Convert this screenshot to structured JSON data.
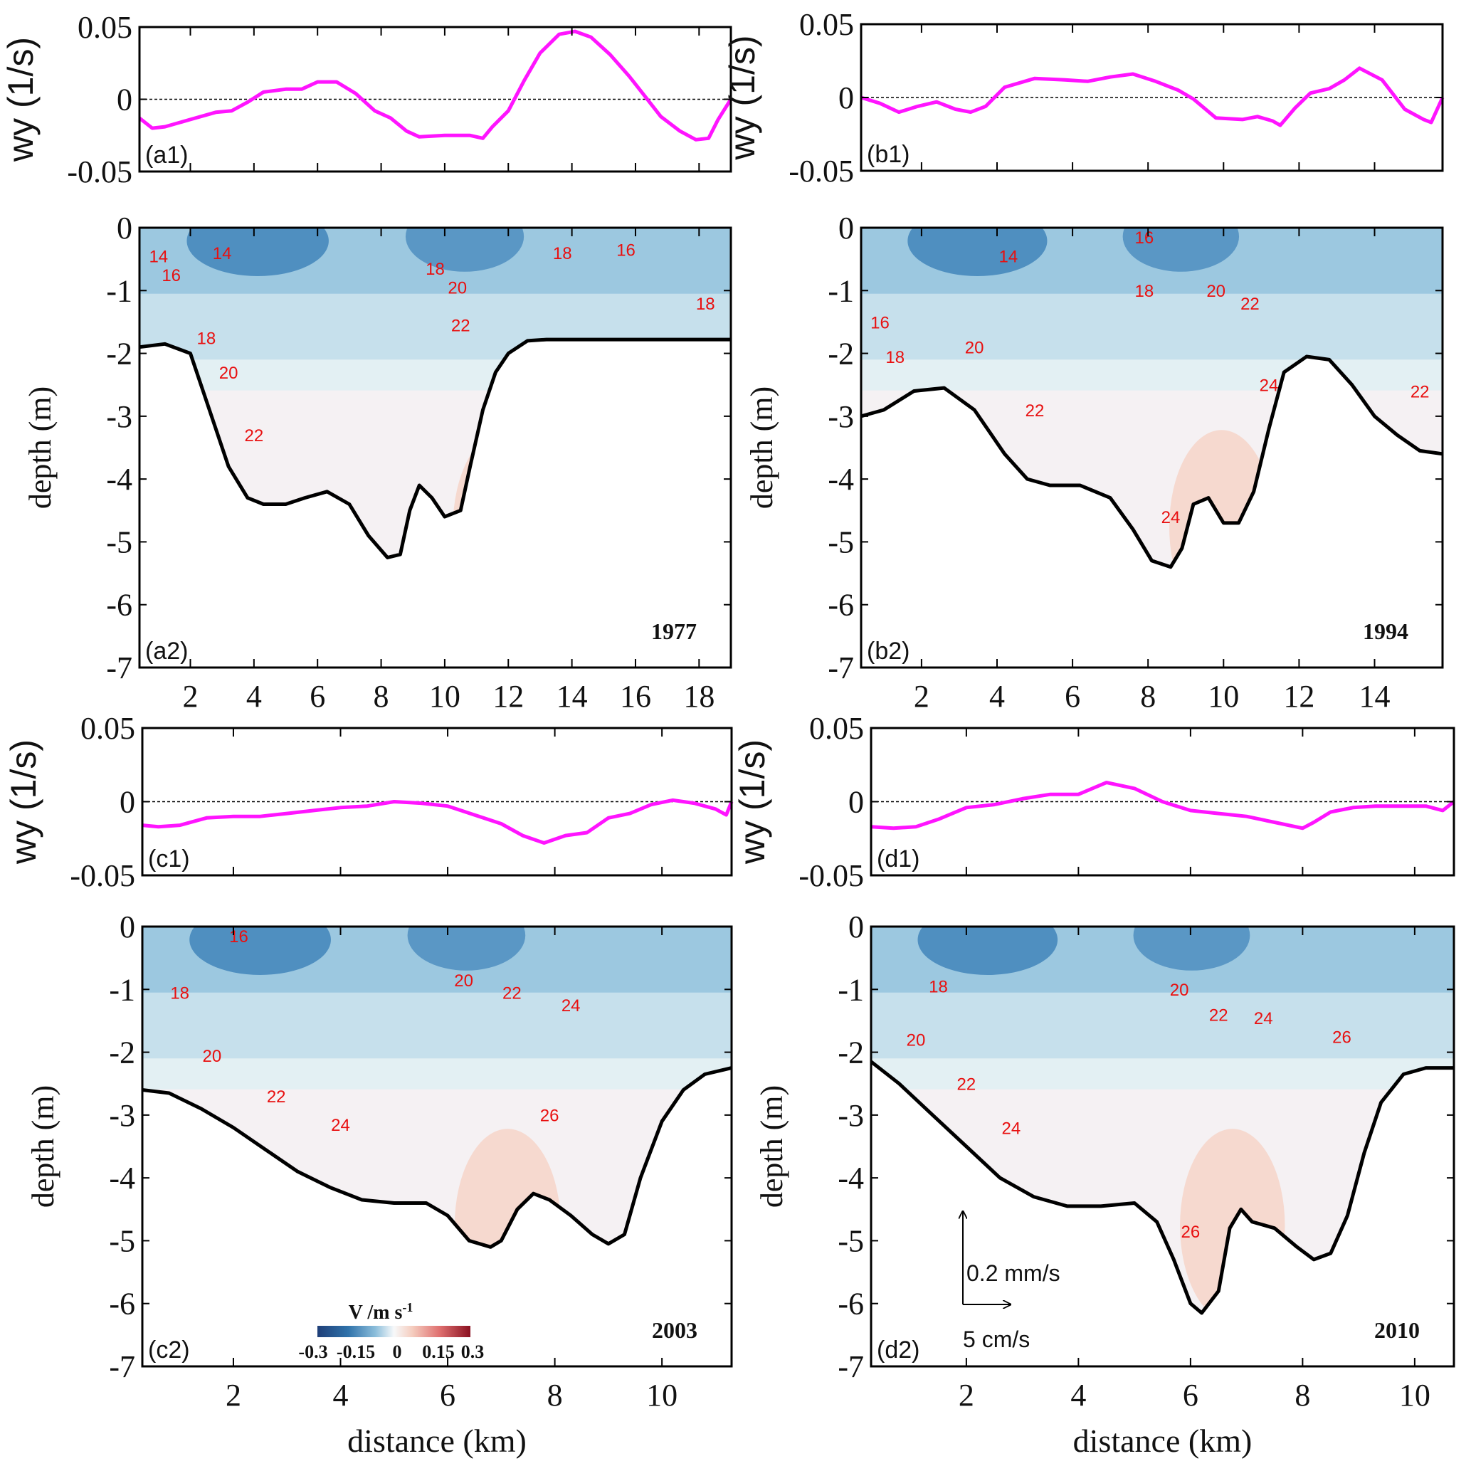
{
  "figure": {
    "colors": {
      "wy_line": "#ff14ff",
      "contour_line": "#1030e0",
      "contour_label": "#e81010",
      "bathymetry": "#000000",
      "frame": "#000000"
    },
    "colorbar": {
      "title": "V /m s",
      "title_sup": "-1",
      "ticks": [
        "-0.3",
        "-0.15",
        "0",
        "0.15",
        "0.3"
      ],
      "range": [
        -0.3,
        0.3
      ],
      "colors": [
        "#1f3f78",
        "#2f72aa",
        "#6aa6cf",
        "#b7d6e8",
        "#f4f7f8",
        "#f7d8cc",
        "#ec9a93",
        "#d44c55",
        "#8a1020"
      ]
    },
    "scale_arrow": {
      "vertical_label": "0.2 mm/s",
      "horizontal_label": "5 cm/s"
    }
  },
  "chart_data": [
    {
      "id": "a1",
      "type": "line",
      "panel_label": "(a1)",
      "ylabel": "wy (1/s)",
      "ylim": [
        -0.05,
        0.05
      ],
      "yticks": [
        "0.05",
        "0",
        "-0.05"
      ],
      "xlim": [
        0.4,
        19.0
      ],
      "xticks": [
        2,
        4,
        6,
        8,
        10,
        12,
        14,
        16,
        18
      ],
      "xtick_labels_shown": false,
      "zero_line": "dashed",
      "x": [
        0.4,
        0.8,
        1.2,
        2.0,
        2.8,
        3.3,
        3.8,
        4.3,
        5.0,
        5.5,
        6.0,
        6.6,
        7.2,
        7.8,
        8.3,
        8.8,
        9.2,
        10.0,
        10.8,
        11.2,
        11.5,
        12.0,
        12.5,
        13.0,
        13.6,
        14.1,
        14.6,
        15.2,
        15.8,
        16.3,
        16.8,
        17.4,
        17.9,
        18.3,
        18.6,
        19.0
      ],
      "y": [
        -0.013,
        -0.02,
        -0.019,
        -0.014,
        -0.009,
        -0.008,
        -0.002,
        0.005,
        0.007,
        0.007,
        0.012,
        0.012,
        0.004,
        -0.008,
        -0.013,
        -0.022,
        -0.026,
        -0.025,
        -0.025,
        -0.027,
        -0.019,
        -0.008,
        0.013,
        0.032,
        0.045,
        0.047,
        0.043,
        0.031,
        0.016,
        0.002,
        -0.012,
        -0.022,
        -0.028,
        -0.027,
        -0.014,
        0.0
      ]
    },
    {
      "id": "b1",
      "type": "line",
      "panel_label": "(b1)",
      "ylabel": "wy (1/s)",
      "ylim": [
        -0.05,
        0.05
      ],
      "yticks": [
        "0.05",
        "0",
        "-0.05"
      ],
      "xlim": [
        0.4,
        15.8
      ],
      "xticks": [
        2,
        4,
        6,
        8,
        10,
        12,
        14
      ],
      "xtick_labels_shown": false,
      "zero_line": "dashed",
      "x": [
        0.4,
        0.9,
        1.4,
        1.9,
        2.4,
        2.9,
        3.3,
        3.7,
        4.2,
        5.0,
        5.8,
        6.4,
        7.0,
        7.6,
        8.2,
        8.8,
        9.2,
        9.8,
        10.5,
        10.9,
        11.3,
        11.5,
        11.9,
        12.3,
        12.8,
        13.2,
        13.6,
        14.2,
        14.8,
        15.3,
        15.5,
        15.8
      ],
      "y": [
        0.0,
        -0.004,
        -0.01,
        -0.006,
        -0.003,
        -0.008,
        -0.01,
        -0.006,
        0.007,
        0.013,
        0.012,
        0.011,
        0.014,
        0.016,
        0.011,
        0.005,
        -0.001,
        -0.014,
        -0.015,
        -0.013,
        -0.016,
        -0.019,
        -0.007,
        0.003,
        0.006,
        0.012,
        0.02,
        0.012,
        -0.008,
        -0.015,
        -0.017,
        0.0
      ]
    },
    {
      "id": "c1",
      "type": "line",
      "panel_label": "(c1)",
      "ylabel": "wy (1/s)",
      "ylim": [
        -0.05,
        0.05
      ],
      "yticks": [
        "0.05",
        "0",
        "-0.05"
      ],
      "xlim": [
        0.3,
        11.3
      ],
      "xticks": [
        2,
        4,
        6,
        8,
        10
      ],
      "xtick_labels_shown": false,
      "zero_line": "dashed",
      "x": [
        0.3,
        0.6,
        1.0,
        1.5,
        2.0,
        2.5,
        3.0,
        3.5,
        4.0,
        4.5,
        5.0,
        5.5,
        6.0,
        6.5,
        7.0,
        7.4,
        7.8,
        8.2,
        8.6,
        9.0,
        9.4,
        9.8,
        10.2,
        10.6,
        11.0,
        11.2,
        11.3
      ],
      "y": [
        -0.016,
        -0.017,
        -0.016,
        -0.011,
        -0.01,
        -0.01,
        -0.008,
        -0.006,
        -0.004,
        -0.003,
        0.0,
        -0.001,
        -0.003,
        -0.009,
        -0.015,
        -0.023,
        -0.028,
        -0.023,
        -0.021,
        -0.011,
        -0.008,
        -0.002,
        0.001,
        -0.001,
        -0.005,
        -0.009,
        0.0
      ]
    },
    {
      "id": "d1",
      "type": "line",
      "panel_label": "(d1)",
      "ylabel": "wy (1/s)",
      "ylim": [
        -0.05,
        0.05
      ],
      "yticks": [
        "0.05",
        "0",
        "-0.05"
      ],
      "xlim": [
        0.3,
        10.7
      ],
      "xticks": [
        2,
        4,
        6,
        8,
        10
      ],
      "xtick_labels_shown": false,
      "zero_line": "dashed",
      "x": [
        0.3,
        0.7,
        1.1,
        1.5,
        2.0,
        2.5,
        3.0,
        3.5,
        4.0,
        4.5,
        5.0,
        5.5,
        6.0,
        6.5,
        7.0,
        7.5,
        8.0,
        8.2,
        8.5,
        8.9,
        9.3,
        9.8,
        10.2,
        10.5,
        10.7
      ],
      "y": [
        -0.017,
        -0.018,
        -0.017,
        -0.012,
        -0.004,
        -0.002,
        0.002,
        0.005,
        0.005,
        0.013,
        0.009,
        0.0,
        -0.006,
        -0.008,
        -0.01,
        -0.014,
        -0.018,
        -0.014,
        -0.007,
        -0.004,
        -0.003,
        -0.003,
        -0.003,
        -0.006,
        0.0
      ]
    },
    {
      "id": "a2",
      "type": "heatmap",
      "panel_label": "(a2)",
      "year": "1977",
      "ylabel": "depth (m)",
      "ylim": [
        -7,
        0
      ],
      "yticks": [
        "0",
        "-1",
        "-2",
        "-3",
        "-4",
        "-5",
        "-6",
        "-7"
      ],
      "xlim": [
        0.4,
        19.0
      ],
      "xticks": [
        "2",
        "4",
        "6",
        "8",
        "10",
        "12",
        "14",
        "16",
        "18"
      ],
      "xlabel": "",
      "bathymetry": {
        "x": [
          0.4,
          1.2,
          2.0,
          2.6,
          3.2,
          3.8,
          4.3,
          5.0,
          5.6,
          6.3,
          7.0,
          7.6,
          8.2,
          8.6,
          8.9,
          9.2,
          9.6,
          10.0,
          10.5,
          10.8,
          11.2,
          11.6,
          12.0,
          12.6,
          13.2,
          14.0,
          16.0,
          18.0,
          19.0
        ],
        "depth": [
          -1.9,
          -1.85,
          -2.0,
          -2.9,
          -3.8,
          -4.3,
          -4.4,
          -4.4,
          -4.3,
          -4.2,
          -4.4,
          -4.9,
          -5.25,
          -5.2,
          -4.5,
          -4.1,
          -4.3,
          -4.6,
          -4.5,
          -3.8,
          -2.9,
          -2.3,
          -2.0,
          -1.8,
          -1.78,
          -1.78,
          -1.78,
          -1.78,
          -1.78
        ]
      },
      "isotherm_labels": [
        {
          "value": "14",
          "x": 1.0,
          "depth": -0.55
        },
        {
          "value": "14",
          "x": 3.0,
          "depth": -0.5
        },
        {
          "value": "16",
          "x": 1.4,
          "depth": -0.85
        },
        {
          "value": "18",
          "x": 2.5,
          "depth": -1.85
        },
        {
          "value": "20",
          "x": 3.2,
          "depth": -2.4
        },
        {
          "value": "22",
          "x": 4.0,
          "depth": -3.4
        },
        {
          "value": "18",
          "x": 9.7,
          "depth": -0.75
        },
        {
          "value": "20",
          "x": 10.4,
          "depth": -1.05
        },
        {
          "value": "22",
          "x": 10.5,
          "depth": -1.65
        },
        {
          "value": "18",
          "x": 13.7,
          "depth": -0.5
        },
        {
          "value": "16",
          "x": 15.7,
          "depth": -0.45
        },
        {
          "value": "18",
          "x": 18.2,
          "depth": -1.3
        }
      ]
    },
    {
      "id": "b2",
      "type": "heatmap",
      "panel_label": "(b2)",
      "year": "1994",
      "ylabel": "depth (m)",
      "ylim": [
        -7,
        0
      ],
      "yticks": [
        "0",
        "-1",
        "-2",
        "-3",
        "-4",
        "-5",
        "-6",
        "-7"
      ],
      "xlim": [
        0.4,
        15.8
      ],
      "xticks": [
        "2",
        "4",
        "6",
        "8",
        "10",
        "12",
        "14"
      ],
      "xlabel": "",
      "bathymetry": {
        "x": [
          0.4,
          1.0,
          1.8,
          2.6,
          3.4,
          4.2,
          4.8,
          5.4,
          6.2,
          7.0,
          7.6,
          8.1,
          8.6,
          8.9,
          9.2,
          9.6,
          10.0,
          10.4,
          10.8,
          11.2,
          11.6,
          12.2,
          12.8,
          13.4,
          14.0,
          14.6,
          15.2,
          15.8
        ],
        "depth": [
          -3.0,
          -2.9,
          -2.6,
          -2.55,
          -2.9,
          -3.6,
          -4.0,
          -4.1,
          -4.1,
          -4.3,
          -4.8,
          -5.3,
          -5.4,
          -5.1,
          -4.4,
          -4.3,
          -4.7,
          -4.7,
          -4.2,
          -3.2,
          -2.3,
          -2.05,
          -2.1,
          -2.5,
          -3.0,
          -3.3,
          -3.55,
          -3.6
        ]
      },
      "isotherm_labels": [
        {
          "value": "14",
          "x": 4.3,
          "depth": -0.55
        },
        {
          "value": "16",
          "x": 7.9,
          "depth": -0.25
        },
        {
          "value": "18",
          "x": 7.9,
          "depth": -1.1
        },
        {
          "value": "20",
          "x": 9.8,
          "depth": -1.1
        },
        {
          "value": "22",
          "x": 10.7,
          "depth": -1.3
        },
        {
          "value": "16",
          "x": 0.9,
          "depth": -1.6
        },
        {
          "value": "18",
          "x": 1.3,
          "depth": -2.15
        },
        {
          "value": "20",
          "x": 3.4,
          "depth": -2.0
        },
        {
          "value": "22",
          "x": 5.0,
          "depth": -3.0
        },
        {
          "value": "24",
          "x": 11.2,
          "depth": -2.6
        },
        {
          "value": "24",
          "x": 8.6,
          "depth": -4.7
        },
        {
          "value": "22",
          "x": 15.2,
          "depth": -2.7
        }
      ]
    },
    {
      "id": "c2",
      "type": "heatmap",
      "panel_label": "(c2)",
      "year": "2003",
      "ylabel": "depth (m)",
      "ylim": [
        -7,
        0
      ],
      "yticks": [
        "0",
        "-1",
        "-2",
        "-3",
        "-4",
        "-5",
        "-6",
        "-7"
      ],
      "xlim": [
        0.3,
        11.3
      ],
      "xticks": [
        "2",
        "4",
        "6",
        "8",
        "10"
      ],
      "xlabel": "distance (km)",
      "bathymetry": {
        "x": [
          0.3,
          0.8,
          1.4,
          2.0,
          2.6,
          3.2,
          3.8,
          4.4,
          5.0,
          5.6,
          6.0,
          6.4,
          6.8,
          7.0,
          7.3,
          7.6,
          7.9,
          8.3,
          8.7,
          9.0,
          9.3,
          9.6,
          10.0,
          10.4,
          10.8,
          11.3
        ],
        "depth": [
          -2.6,
          -2.65,
          -2.9,
          -3.2,
          -3.55,
          -3.9,
          -4.15,
          -4.35,
          -4.4,
          -4.4,
          -4.6,
          -5.0,
          -5.1,
          -5.0,
          -4.5,
          -4.25,
          -4.35,
          -4.6,
          -4.9,
          -5.05,
          -4.9,
          -4.0,
          -3.1,
          -2.6,
          -2.35,
          -2.25
        ]
      },
      "isotherm_labels": [
        {
          "value": "16",
          "x": 2.1,
          "depth": -0.25
        },
        {
          "value": "18",
          "x": 1.0,
          "depth": -1.15
        },
        {
          "value": "20",
          "x": 1.6,
          "depth": -2.15
        },
        {
          "value": "22",
          "x": 2.8,
          "depth": -2.8
        },
        {
          "value": "24",
          "x": 4.0,
          "depth": -3.25
        },
        {
          "value": "20",
          "x": 6.3,
          "depth": -0.95
        },
        {
          "value": "22",
          "x": 7.2,
          "depth": -1.15
        },
        {
          "value": "24",
          "x": 8.3,
          "depth": -1.35
        },
        {
          "value": "26",
          "x": 7.9,
          "depth": -3.1
        }
      ]
    },
    {
      "id": "d2",
      "type": "heatmap",
      "panel_label": "(d2)",
      "year": "2010",
      "ylabel": "depth (m)",
      "ylim": [
        -7,
        0
      ],
      "yticks": [
        "0",
        "-1",
        "-2",
        "-3",
        "-4",
        "-5",
        "-6",
        "-7"
      ],
      "xlim": [
        0.3,
        10.7
      ],
      "xticks": [
        "2",
        "4",
        "6",
        "8",
        "10"
      ],
      "xlabel": "distance (km)",
      "bathymetry": {
        "x": [
          0.3,
          0.8,
          1.4,
          2.0,
          2.6,
          3.2,
          3.8,
          4.4,
          5.0,
          5.4,
          5.7,
          6.0,
          6.2,
          6.5,
          6.7,
          6.9,
          7.1,
          7.5,
          7.9,
          8.2,
          8.5,
          8.8,
          9.1,
          9.4,
          9.8,
          10.2,
          10.7
        ],
        "depth": [
          -2.15,
          -2.5,
          -3.0,
          -3.5,
          -4.0,
          -4.3,
          -4.45,
          -4.45,
          -4.4,
          -4.7,
          -5.3,
          -6.0,
          -6.15,
          -5.8,
          -4.8,
          -4.5,
          -4.7,
          -4.8,
          -5.1,
          -5.3,
          -5.2,
          -4.6,
          -3.6,
          -2.8,
          -2.35,
          -2.25,
          -2.25
        ]
      },
      "isotherm_labels": [
        {
          "value": "18",
          "x": 1.5,
          "depth": -1.05
        },
        {
          "value": "20",
          "x": 1.1,
          "depth": -1.9
        },
        {
          "value": "22",
          "x": 2.0,
          "depth": -2.6
        },
        {
          "value": "24",
          "x": 2.8,
          "depth": -3.3
        },
        {
          "value": "20",
          "x": 5.8,
          "depth": -1.1
        },
        {
          "value": "22",
          "x": 6.5,
          "depth": -1.5
        },
        {
          "value": "24",
          "x": 7.3,
          "depth": -1.55
        },
        {
          "value": "26",
          "x": 8.7,
          "depth": -1.85
        },
        {
          "value": "26",
          "x": 6.0,
          "depth": -4.95
        }
      ]
    }
  ]
}
